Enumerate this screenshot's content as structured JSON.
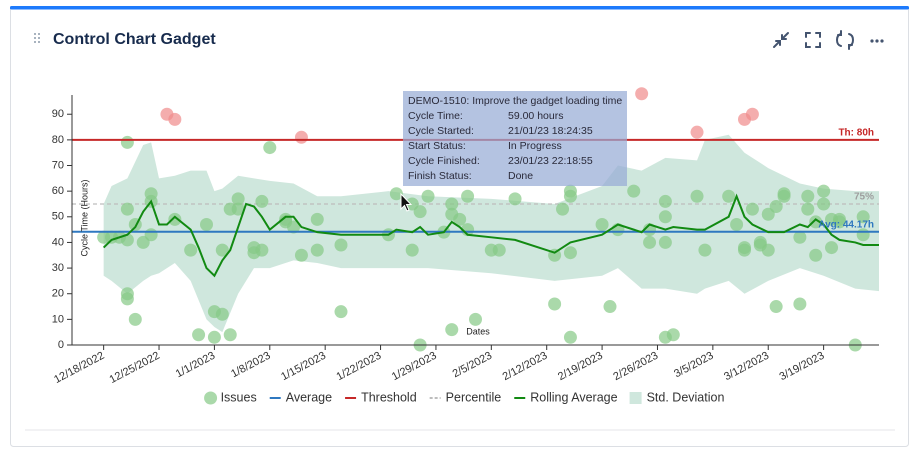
{
  "header": {
    "title": "Control Chart Gadget"
  },
  "chart_data": {
    "type": "control",
    "ylabel": "Cycle Time (Hours)",
    "xlabel": "Dates",
    "ylim": [
      0,
      97.5
    ],
    "yticks": [
      0,
      10,
      20,
      30,
      40,
      50,
      60,
      70,
      80,
      90
    ],
    "xlim": [
      "2022-12-14",
      "2023-03-26"
    ],
    "xticks": [
      {
        "value": "2022-12-18",
        "label": "12/18/2022"
      },
      {
        "value": "2022-12-25",
        "label": "12/25/2022"
      },
      {
        "value": "2023-01-01",
        "label": "1/1/2023"
      },
      {
        "value": "2023-01-08",
        "label": "1/8/2023"
      },
      {
        "value": "2023-01-15",
        "label": "1/15/2023"
      },
      {
        "value": "2023-01-22",
        "label": "1/22/2023"
      },
      {
        "value": "2023-01-29",
        "label": "1/29/2023"
      },
      {
        "value": "2023-02-05",
        "label": "2/5/2023"
      },
      {
        "value": "2023-02-12",
        "label": "2/12/2023"
      },
      {
        "value": "2023-02-19",
        "label": "2/19/2023"
      },
      {
        "value": "2023-02-26",
        "label": "2/26/2023"
      },
      {
        "value": "2023-03-05",
        "label": "3/5/2023"
      },
      {
        "value": "2023-03-12",
        "label": "3/12/2023"
      },
      {
        "value": "2023-03-19",
        "label": "3/19/2023"
      }
    ],
    "series": [
      {
        "name": "Issues",
        "type": "scatter",
        "color": "#86c986",
        "over_threshold_color": "#f08a8a",
        "x": [
          "2022-12-18",
          "2022-12-19",
          "2022-12-20",
          "2022-12-21",
          "2022-12-21",
          "2022-12-21",
          "2022-12-21",
          "2022-12-21",
          "2022-12-22",
          "2022-12-22",
          "2022-12-23",
          "2022-12-24",
          "2022-12-24",
          "2022-12-24",
          "2022-12-26",
          "2022-12-27",
          "2022-12-27",
          "2022-12-29",
          "2022-12-30",
          "2022-12-31",
          "2023-01-01",
          "2023-01-01",
          "2023-01-02",
          "2023-01-02",
          "2023-01-03",
          "2023-01-03",
          "2023-01-04",
          "2023-01-04",
          "2023-01-06",
          "2023-01-06",
          "2023-01-07",
          "2023-01-07",
          "2023-01-08",
          "2023-01-10",
          "2023-01-10",
          "2023-01-11",
          "2023-01-12",
          "2023-01-12",
          "2023-01-14",
          "2023-01-14",
          "2023-01-17",
          "2023-01-17",
          "2023-01-23",
          "2023-01-24",
          "2023-01-26",
          "2023-01-26",
          "2023-01-27",
          "2023-01-27",
          "2023-01-28",
          "2023-01-30",
          "2023-01-31",
          "2023-01-31",
          "2023-01-31",
          "2023-02-01",
          "2023-02-02",
          "2023-02-02",
          "2023-02-03",
          "2023-02-05",
          "2023-02-06",
          "2023-02-08",
          "2023-02-13",
          "2023-02-13",
          "2023-02-14",
          "2023-02-15",
          "2023-02-15",
          "2023-02-15",
          "2023-02-15",
          "2023-02-19",
          "2023-02-20",
          "2023-02-21",
          "2023-02-23",
          "2023-02-24",
          "2023-02-25",
          "2023-02-25",
          "2023-02-27",
          "2023-02-27",
          "2023-02-27",
          "2023-02-27",
          "2023-02-28",
          "2023-03-03",
          "2023-03-03",
          "2023-03-04",
          "2023-03-07",
          "2023-03-08",
          "2023-03-09",
          "2023-03-09",
          "2023-03-09",
          "2023-03-10",
          "2023-03-10",
          "2023-03-11",
          "2023-03-11",
          "2023-03-12",
          "2023-03-12",
          "2023-03-13",
          "2023-03-13",
          "2023-03-14",
          "2023-03-14",
          "2023-03-16",
          "2023-03-16",
          "2023-03-17",
          "2023-03-17",
          "2023-03-18",
          "2023-03-18",
          "2023-03-19",
          "2023-03-19",
          "2023-03-20",
          "2023-03-20",
          "2023-03-21",
          "2023-03-21",
          "2023-03-23",
          "2023-03-24",
          "2023-03-24"
        ],
        "values": [
          42,
          42,
          42,
          41,
          53,
          79,
          20,
          18,
          10,
          47,
          40,
          59,
          43,
          56,
          90,
          88,
          49,
          37,
          4,
          47,
          13,
          3,
          37,
          12,
          53,
          4,
          57,
          53,
          38,
          36,
          37,
          56,
          77,
          49,
          48,
          46,
          81,
          35,
          49,
          37,
          13,
          39,
          43,
          59,
          37,
          55,
          52,
          0,
          58,
          44,
          6,
          55,
          51,
          49,
          45,
          58,
          10,
          37,
          37,
          57,
          16,
          35,
          53,
          58,
          36,
          60,
          3,
          47,
          15,
          45,
          60,
          98,
          45,
          40,
          50,
          40,
          56,
          3,
          4,
          58,
          83,
          37,
          58,
          47,
          88,
          38,
          37,
          53,
          90,
          39,
          40,
          51,
          37,
          15,
          54,
          59,
          58,
          42,
          16,
          53,
          58,
          48,
          35,
          55,
          60,
          38,
          49,
          49,
          48,
          0,
          50,
          43
        ]
      },
      {
        "name": "Average",
        "type": "hline",
        "color": "#2f78c0",
        "value": 44.17,
        "label": "Avg: 44.17h"
      },
      {
        "name": "Threshold",
        "type": "hline",
        "color": "#c62828",
        "value": 80,
        "label": "Th: 80h"
      },
      {
        "name": "Percentile",
        "type": "hline",
        "dashed": true,
        "color": "#bdbdbd",
        "value": 55,
        "label": "75%"
      },
      {
        "name": "Rolling Average",
        "type": "line",
        "color": "#128a12",
        "x": [
          "2022-12-18",
          "2022-12-19",
          "2022-12-21",
          "2022-12-22",
          "2022-12-23",
          "2022-12-24",
          "2022-12-25",
          "2022-12-26",
          "2022-12-27",
          "2022-12-29",
          "2022-12-30",
          "2022-12-31",
          "2023-01-01",
          "2023-01-02",
          "2023-01-03",
          "2023-01-04",
          "2023-01-05",
          "2023-01-06",
          "2023-01-07",
          "2023-01-08",
          "2023-01-10",
          "2023-01-11",
          "2023-01-12",
          "2023-01-14",
          "2023-01-17",
          "2023-01-23",
          "2023-01-24",
          "2023-01-26",
          "2023-01-27",
          "2023-01-28",
          "2023-01-30",
          "2023-01-31",
          "2023-02-01",
          "2023-02-02",
          "2023-02-05",
          "2023-02-08",
          "2023-02-13",
          "2023-02-14",
          "2023-02-15",
          "2023-02-19",
          "2023-02-21",
          "2023-02-23",
          "2023-02-24",
          "2023-02-25",
          "2023-02-27",
          "2023-02-28",
          "2023-03-03",
          "2023-03-04",
          "2023-03-07",
          "2023-03-08",
          "2023-03-09",
          "2023-03-10",
          "2023-03-12",
          "2023-03-14",
          "2023-03-16",
          "2023-03-17",
          "2023-03-18",
          "2023-03-19",
          "2023-03-20",
          "2023-03-21",
          "2023-03-23",
          "2023-03-24",
          "2023-03-26"
        ],
        "values": [
          38,
          41,
          43,
          46,
          52,
          56,
          47,
          47,
          50,
          45,
          38,
          30,
          27,
          33,
          37,
          46,
          55,
          54,
          50,
          45,
          50,
          50,
          46,
          44,
          43,
          43,
          45,
          44,
          46,
          43,
          44,
          48,
          46,
          43,
          42,
          41,
          36,
          38,
          40,
          43,
          47,
          45,
          44,
          47,
          45,
          46,
          45,
          45,
          50,
          58,
          50,
          47,
          44,
          44,
          47,
          46,
          49,
          47,
          43,
          41,
          40,
          39,
          39
        ]
      },
      {
        "name": "Std. Deviation",
        "type": "band",
        "color": "#cfe7dd",
        "x": [
          "2022-12-18",
          "2022-12-19",
          "2022-12-21",
          "2022-12-23",
          "2022-12-24",
          "2022-12-25",
          "2022-12-27",
          "2022-12-29",
          "2022-12-31",
          "2023-01-01",
          "2023-01-02",
          "2023-01-04",
          "2023-01-06",
          "2023-01-08",
          "2023-01-11",
          "2023-01-14",
          "2023-01-17",
          "2023-01-23",
          "2023-01-28",
          "2023-02-05",
          "2023-02-13",
          "2023-02-19",
          "2023-02-21",
          "2023-02-24",
          "2023-02-27",
          "2023-03-03",
          "2023-03-04",
          "2023-03-07",
          "2023-03-09",
          "2023-03-12",
          "2023-03-16",
          "2023-03-19",
          "2023-03-23",
          "2023-03-26"
        ],
        "upper": [
          55,
          62,
          65,
          78,
          79,
          65,
          66,
          68,
          68,
          60,
          61,
          66,
          65,
          64,
          63,
          58,
          58,
          60,
          58,
          57,
          55,
          62,
          70,
          68,
          73,
          72,
          80,
          82,
          75,
          69,
          63,
          61,
          60,
          60
        ],
        "lower": [
          27,
          25,
          20,
          25,
          27,
          28,
          32,
          25,
          10,
          7,
          5,
          20,
          30,
          30,
          33,
          32,
          30,
          30,
          30,
          28,
          25,
          27,
          30,
          22,
          22,
          20,
          22,
          25,
          20,
          25,
          30,
          27,
          22,
          21
        ]
      }
    ],
    "tooltip": {
      "title": "DEMO-1510: Improve the gadget loading time",
      "rows": [
        [
          "Cycle Time:",
          "59.00 hours"
        ],
        [
          "Cycle Started:",
          "21/01/23 18:24:35"
        ],
        [
          "Start Status:",
          "In Progress"
        ],
        [
          "Cycle Finished:",
          "23/01/23 22:18:55"
        ],
        [
          "Finish Status:",
          "Done"
        ]
      ]
    }
  }
}
